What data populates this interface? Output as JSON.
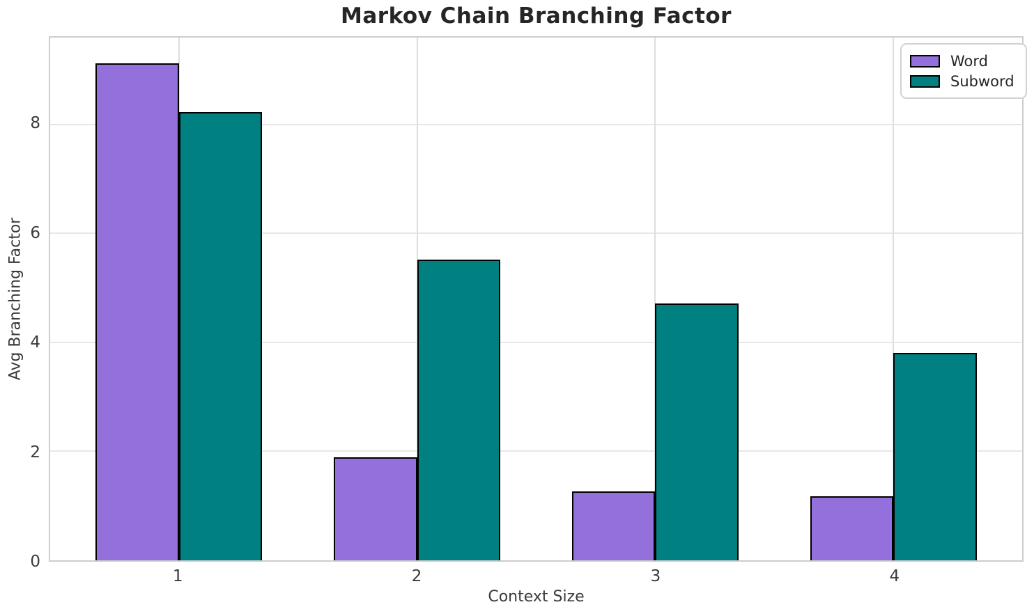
{
  "title": "Markov Chain Branching Factor",
  "chart_data": {
    "type": "bar",
    "categories": [
      "1",
      "2",
      "3",
      "4"
    ],
    "series": [
      {
        "name": "Word",
        "color": "#9370DB",
        "values": [
          9.12,
          1.89,
          1.27,
          1.17
        ]
      },
      {
        "name": "Subword",
        "color": "#008080",
        "values": [
          8.23,
          5.52,
          4.71,
          3.8
        ]
      }
    ],
    "title": "Markov Chain Branching Factor",
    "xlabel": "Context Size",
    "ylabel": "Avg Branching Factor",
    "ylim": [
      0,
      9.59
    ],
    "xlim": [
      0.46,
      4.54
    ],
    "yticks": [
      0,
      2,
      4,
      6,
      8
    ],
    "ytick_labels": [
      "0",
      "2",
      "4",
      "6",
      "8"
    ],
    "bar_width": 0.35,
    "grid": true,
    "legend_position": "upper right",
    "bar_edge_color": "#000000",
    "grid_color": "#e7e7e7",
    "spine_color": "#cdcdcd",
    "background": "#ffffff"
  }
}
